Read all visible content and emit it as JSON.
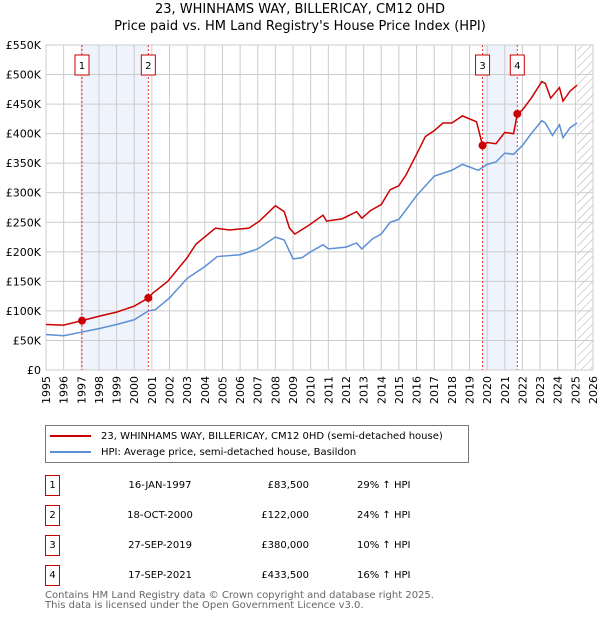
{
  "chart_data": {
    "type": "line",
    "title": "23, WHINHAMS WAY, BILLERICAY, CM12 0HD",
    "subtitle": "Price paid vs. HM Land Registry's House Price Index (HPI)",
    "xlim": [
      1995,
      2026
    ],
    "ylim": [
      0,
      550000
    ],
    "x_ticks": [
      "1995",
      "1996",
      "1997",
      "1998",
      "1999",
      "2000",
      "2001",
      "2002",
      "2003",
      "2004",
      "2005",
      "2006",
      "2007",
      "2008",
      "2009",
      "2010",
      "2011",
      "2012",
      "2013",
      "2014",
      "2015",
      "2016",
      "2017",
      "2018",
      "2019",
      "2020",
      "2021",
      "2022",
      "2023",
      "2024",
      "2025",
      "2026"
    ],
    "y_ticks": [
      {
        "v": 0,
        "l": "£0"
      },
      {
        "v": 50000,
        "l": "£50K"
      },
      {
        "v": 100000,
        "l": "£100K"
      },
      {
        "v": 150000,
        "l": "£150K"
      },
      {
        "v": 200000,
        "l": "£200K"
      },
      {
        "v": 250000,
        "l": "£250K"
      },
      {
        "v": 300000,
        "l": "£300K"
      },
      {
        "v": 350000,
        "l": "£350K"
      },
      {
        "v": 400000,
        "l": "£400K"
      },
      {
        "v": 450000,
        "l": "£450K"
      },
      {
        "v": 500000,
        "l": "£500K"
      },
      {
        "v": 550000,
        "l": "£550K"
      }
    ],
    "grid": true,
    "series": [
      {
        "name": "23, WHINHAMS WAY, BILLERICAY, CM12 0HD (semi-detached house)",
        "color": "#cc0000",
        "points": [
          [
            1995,
            77000
          ],
          [
            1996,
            76000
          ],
          [
            1997.04,
            83500
          ],
          [
            1998,
            91000
          ],
          [
            1999,
            98000
          ],
          [
            2000,
            108000
          ],
          [
            2000.8,
            122000
          ],
          [
            2001.05,
            130000
          ],
          [
            2001.9,
            150000
          ],
          [
            2003,
            190000
          ],
          [
            2003.5,
            213000
          ],
          [
            2004.6,
            240000
          ],
          [
            2005.4,
            237000
          ],
          [
            2006.5,
            240000
          ],
          [
            2007.1,
            252000
          ],
          [
            2008,
            278000
          ],
          [
            2008.5,
            268000
          ],
          [
            2008.8,
            240000
          ],
          [
            2009.1,
            230000
          ],
          [
            2009.9,
            245000
          ],
          [
            2010.7,
            262000
          ],
          [
            2010.9,
            252000
          ],
          [
            2011.8,
            256000
          ],
          [
            2012.6,
            268000
          ],
          [
            2012.9,
            257000
          ],
          [
            2013.4,
            270000
          ],
          [
            2014,
            280000
          ],
          [
            2014.5,
            305000
          ],
          [
            2015,
            312000
          ],
          [
            2015.4,
            330000
          ],
          [
            2016,
            365000
          ],
          [
            2016.5,
            395000
          ],
          [
            2017,
            405000
          ],
          [
            2017.5,
            418000
          ],
          [
            2018,
            418000
          ],
          [
            2018.6,
            430000
          ],
          [
            2019.4,
            420000
          ],
          [
            2019.74,
            380000
          ],
          [
            2020,
            385000
          ],
          [
            2020.5,
            383000
          ],
          [
            2021,
            402000
          ],
          [
            2021.5,
            400000
          ],
          [
            2021.71,
            433500
          ],
          [
            2022,
            440000
          ],
          [
            2022.5,
            460000
          ],
          [
            2023.1,
            488000
          ],
          [
            2023.3,
            485000
          ],
          [
            2023.6,
            460000
          ],
          [
            2024.1,
            478000
          ],
          [
            2024.3,
            455000
          ],
          [
            2024.7,
            472000
          ],
          [
            2025.1,
            482000
          ]
        ]
      },
      {
        "name": "HPI: Average price, semi-detached house, Basildon",
        "color": "#5b8fd6",
        "points": [
          [
            1995,
            60000
          ],
          [
            1996,
            58000
          ],
          [
            1997,
            64000
          ],
          [
            1998,
            70000
          ],
          [
            1999,
            77000
          ],
          [
            2000,
            85000
          ],
          [
            2000.8,
            100000
          ],
          [
            2001.2,
            102000
          ],
          [
            2002,
            122000
          ],
          [
            2003,
            155000
          ],
          [
            2004,
            175000
          ],
          [
            2004.7,
            192000
          ],
          [
            2006,
            195000
          ],
          [
            2007,
            205000
          ],
          [
            2008,
            225000
          ],
          [
            2008.5,
            220000
          ],
          [
            2009,
            188000
          ],
          [
            2009.5,
            190000
          ],
          [
            2010,
            200000
          ],
          [
            2010.7,
            212000
          ],
          [
            2011,
            205000
          ],
          [
            2012,
            208000
          ],
          [
            2012.6,
            215000
          ],
          [
            2012.9,
            205000
          ],
          [
            2013.5,
            222000
          ],
          [
            2014,
            230000
          ],
          [
            2014.5,
            250000
          ],
          [
            2015,
            255000
          ],
          [
            2016,
            295000
          ],
          [
            2017,
            328000
          ],
          [
            2018,
            338000
          ],
          [
            2018.6,
            348000
          ],
          [
            2019.5,
            338000
          ],
          [
            2020,
            348000
          ],
          [
            2020.5,
            352000
          ],
          [
            2021,
            367000
          ],
          [
            2021.5,
            365000
          ],
          [
            2022,
            380000
          ],
          [
            2022.5,
            400000
          ],
          [
            2023.1,
            422000
          ],
          [
            2023.3,
            418000
          ],
          [
            2023.7,
            397000
          ],
          [
            2024.1,
            415000
          ],
          [
            2024.3,
            393000
          ],
          [
            2024.7,
            410000
          ],
          [
            2025.1,
            418000
          ]
        ]
      }
    ],
    "sales": [
      {
        "label": "1",
        "x": 1997.04,
        "y": 83500
      },
      {
        "label": "2",
        "x": 2000.8,
        "y": 122000
      },
      {
        "label": "3",
        "x": 2019.74,
        "y": 380000
      },
      {
        "label": "4",
        "x": 2021.71,
        "y": 433500
      }
    ],
    "shaded_ranges": [
      [
        1997.04,
        2000.8
      ],
      [
        2019.74,
        2021.71
      ]
    ],
    "forecast_from": 2025.1,
    "legend_placement": "below"
  },
  "table": [
    {
      "num": "1",
      "date": "16-JAN-1997",
      "price": "£83,500",
      "hpi": "29% ↑ HPI"
    },
    {
      "num": "2",
      "date": "18-OCT-2000",
      "price": "£122,000",
      "hpi": "24% ↑ HPI"
    },
    {
      "num": "3",
      "date": "27-SEP-2019",
      "price": "£380,000",
      "hpi": "10% ↑ HPI"
    },
    {
      "num": "4",
      "date": "17-SEP-2021",
      "price": "£433,500",
      "hpi": "16% ↑ HPI"
    }
  ],
  "footer": {
    "line1": "Contains HM Land Registry data © Crown copyright and database right 2025.",
    "line2": "This data is licensed under the Open Government Licence v3.0."
  }
}
